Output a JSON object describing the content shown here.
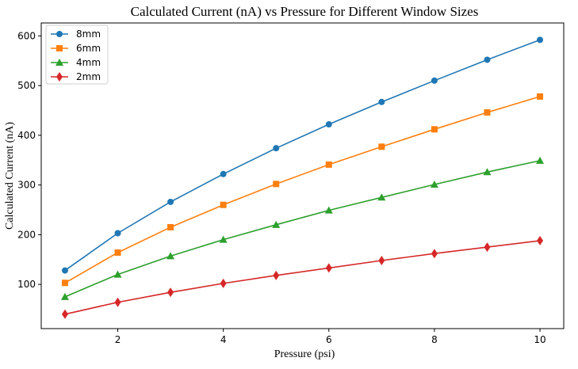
{
  "chart_data": {
    "type": "line",
    "title": "Calculated Current (nA) vs Pressure for Different Window Sizes",
    "xlabel": "Pressure (psi)",
    "ylabel": "Calculated Current (nA)",
    "xlim": [
      0.55,
      10.45
    ],
    "ylim": [
      11,
      626
    ],
    "xticks": [
      2,
      4,
      6,
      8,
      10
    ],
    "yticks": [
      100,
      200,
      300,
      400,
      500,
      600
    ],
    "grid": false,
    "legend_position": "top-left",
    "x": [
      1,
      2,
      3,
      4,
      5,
      6,
      7,
      8,
      9,
      10
    ],
    "series": [
      {
        "name": "8mm",
        "color": "#1f77b4",
        "marker": "circle",
        "values": [
          128,
          203,
          266,
          322,
          374,
          422,
          467,
          510,
          552,
          592
        ]
      },
      {
        "name": "6mm",
        "color": "#ff7f0e",
        "marker": "square",
        "values": [
          103,
          164,
          215,
          260,
          302,
          341,
          377,
          412,
          446,
          478
        ]
      },
      {
        "name": "4mm",
        "color": "#2ca02c",
        "marker": "triangle",
        "values": [
          75,
          120,
          157,
          190,
          220,
          249,
          275,
          301,
          326,
          349
        ]
      },
      {
        "name": "2mm",
        "color": "#d62728",
        "marker": "diamond",
        "values": [
          40,
          64,
          84,
          102,
          118,
          133,
          148,
          162,
          175,
          188
        ]
      }
    ]
  }
}
